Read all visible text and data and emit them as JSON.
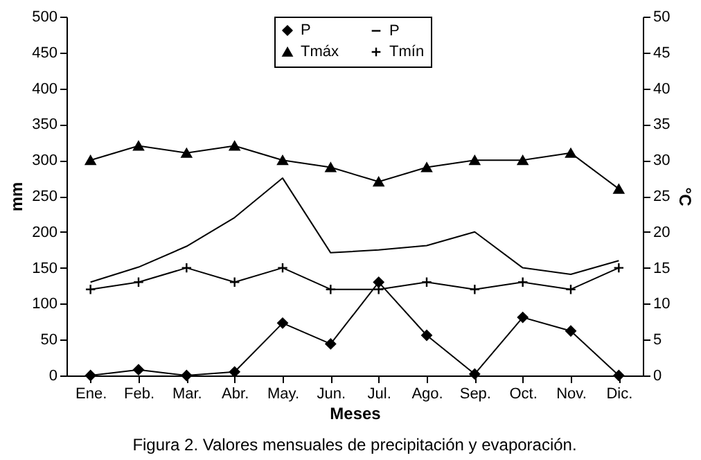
{
  "chart_data": {
    "type": "line",
    "xlabel": "Meses",
    "ylabel": "mm",
    "y2label": "°C",
    "categories": [
      "Ene.",
      "Feb.",
      "Mar.",
      "Abr.",
      "May.",
      "Jun.",
      "Jul.",
      "Ago.",
      "Sep.",
      "Oct.",
      "Nov.",
      "Dic."
    ],
    "series": [
      {
        "name": "P",
        "color": "#000000",
        "marker": "diamond",
        "values": [
          0,
          8,
          0,
          5,
          73,
          44,
          130,
          56,
          2,
          81,
          62,
          0
        ]
      },
      {
        "name": "P",
        "color": "#000000",
        "marker": "none",
        "values": [
          130,
          151,
          180,
          220,
          275,
          171,
          175,
          181,
          200,
          150,
          141,
          160
        ]
      },
      {
        "name": "Tmáx",
        "color": "#000000",
        "marker": "triangle",
        "axis": "y2",
        "values": [
          30,
          32,
          31,
          32,
          30,
          29,
          27,
          29,
          30,
          30,
          31,
          26
        ]
      },
      {
        "name": "Tmín",
        "color": "#000000",
        "marker": "cross",
        "axis": "y2",
        "values": [
          12,
          13,
          15,
          13,
          15,
          12,
          12,
          13,
          12,
          13,
          12,
          15
        ]
      }
    ],
    "ylim": [
      0,
      500
    ],
    "yticks": [
      0,
      50,
      100,
      150,
      200,
      250,
      300,
      350,
      400,
      450,
      500
    ],
    "y2lim": [
      0,
      50
    ],
    "y2ticks": [
      0,
      5,
      10,
      15,
      20,
      25,
      30,
      35,
      40,
      45,
      50
    ],
    "grid": false,
    "legend": "top",
    "annotations": [
      "Figura 2. Valores mensuales de precipitación y evaporación."
    ]
  }
}
